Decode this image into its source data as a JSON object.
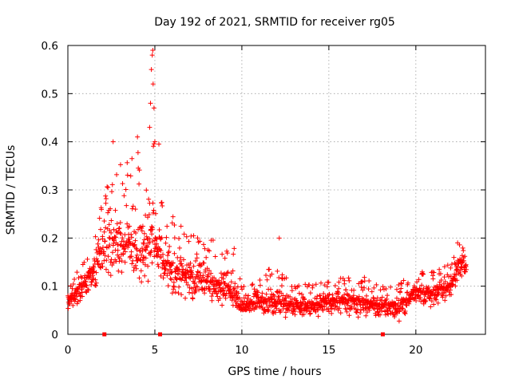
{
  "chart_data": {
    "type": "scatter",
    "title": "Day 192 of 2021, SRMTID for receiver rg05",
    "xlabel": "GPS time / hours",
    "ylabel": "SRMTID / TECUs",
    "xlim": [
      0,
      24
    ],
    "ylim": [
      0,
      0.6
    ],
    "xticks": [
      0,
      5,
      10,
      15,
      20
    ],
    "yticks": [
      0,
      0.1,
      0.2,
      0.3,
      0.4,
      0.5,
      0.6
    ],
    "grid": true,
    "marker": "+",
    "color": "#ff0000",
    "zero_markers_x": [
      2.1,
      5.3,
      18.1
    ],
    "envelope": [
      {
        "t": 0.0,
        "lo": 0.04,
        "mid": 0.07,
        "hi": 0.09
      },
      {
        "t": 0.5,
        "lo": 0.05,
        "mid": 0.09,
        "hi": 0.13
      },
      {
        "t": 1.0,
        "lo": 0.07,
        "mid": 0.11,
        "hi": 0.16
      },
      {
        "t": 1.5,
        "lo": 0.08,
        "mid": 0.14,
        "hi": 0.2
      },
      {
        "t": 2.0,
        "lo": 0.1,
        "mid": 0.19,
        "hi": 0.29
      },
      {
        "t": 2.5,
        "lo": 0.1,
        "mid": 0.2,
        "hi": 0.33
      },
      {
        "t": 3.0,
        "lo": 0.09,
        "mid": 0.18,
        "hi": 0.37
      },
      {
        "t": 3.5,
        "lo": 0.1,
        "mid": 0.19,
        "hi": 0.36
      },
      {
        "t": 4.0,
        "lo": 0.09,
        "mid": 0.18,
        "hi": 0.42
      },
      {
        "t": 4.5,
        "lo": 0.07,
        "mid": 0.17,
        "hi": 0.34
      },
      {
        "t": 4.9,
        "lo": 0.09,
        "mid": 0.22,
        "hi": 0.59
      },
      {
        "t": 5.5,
        "lo": 0.07,
        "mid": 0.15,
        "hi": 0.26
      },
      {
        "t": 6.0,
        "lo": 0.06,
        "mid": 0.14,
        "hi": 0.25
      },
      {
        "t": 6.5,
        "lo": 0.06,
        "mid": 0.13,
        "hi": 0.24
      },
      {
        "t": 7.0,
        "lo": 0.05,
        "mid": 0.12,
        "hi": 0.22
      },
      {
        "t": 8.0,
        "lo": 0.05,
        "mid": 0.11,
        "hi": 0.2
      },
      {
        "t": 9.0,
        "lo": 0.05,
        "mid": 0.1,
        "hi": 0.19
      },
      {
        "t": 9.5,
        "lo": 0.04,
        "mid": 0.09,
        "hi": 0.19
      },
      {
        "t": 10.0,
        "lo": 0.03,
        "mid": 0.06,
        "hi": 0.1
      },
      {
        "t": 11.0,
        "lo": 0.03,
        "mid": 0.07,
        "hi": 0.13
      },
      {
        "t": 12.0,
        "lo": 0.03,
        "mid": 0.07,
        "hi": 0.14
      },
      {
        "t": 13.0,
        "lo": 0.03,
        "mid": 0.06,
        "hi": 0.1
      },
      {
        "t": 14.0,
        "lo": 0.03,
        "mid": 0.06,
        "hi": 0.11
      },
      {
        "t": 15.0,
        "lo": 0.03,
        "mid": 0.07,
        "hi": 0.11
      },
      {
        "t": 16.0,
        "lo": 0.03,
        "mid": 0.07,
        "hi": 0.12
      },
      {
        "t": 17.0,
        "lo": 0.03,
        "mid": 0.07,
        "hi": 0.12
      },
      {
        "t": 18.0,
        "lo": 0.03,
        "mid": 0.06,
        "hi": 0.1
      },
      {
        "t": 19.0,
        "lo": 0.02,
        "mid": 0.06,
        "hi": 0.11
      },
      {
        "t": 20.0,
        "lo": 0.05,
        "mid": 0.09,
        "hi": 0.14
      },
      {
        "t": 21.0,
        "lo": 0.05,
        "mid": 0.09,
        "hi": 0.13
      },
      {
        "t": 22.0,
        "lo": 0.06,
        "mid": 0.1,
        "hi": 0.15
      },
      {
        "t": 22.5,
        "lo": 0.1,
        "mid": 0.15,
        "hi": 0.19
      },
      {
        "t": 22.9,
        "lo": 0.09,
        "mid": 0.14,
        "hi": 0.17
      }
    ],
    "highlight_points": [
      {
        "x": 4.85,
        "y": 0.58
      },
      {
        "x": 4.88,
        "y": 0.59
      },
      {
        "x": 4.8,
        "y": 0.55
      },
      {
        "x": 4.9,
        "y": 0.52
      },
      {
        "x": 4.75,
        "y": 0.48
      },
      {
        "x": 4.95,
        "y": 0.47
      },
      {
        "x": 4.7,
        "y": 0.43
      },
      {
        "x": 5.0,
        "y": 0.4
      },
      {
        "x": 4.0,
        "y": 0.41
      },
      {
        "x": 2.6,
        "y": 0.4
      },
      {
        "x": 12.15,
        "y": 0.2
      },
      {
        "x": 22.4,
        "y": 0.19
      }
    ],
    "point_count": 1700
  }
}
